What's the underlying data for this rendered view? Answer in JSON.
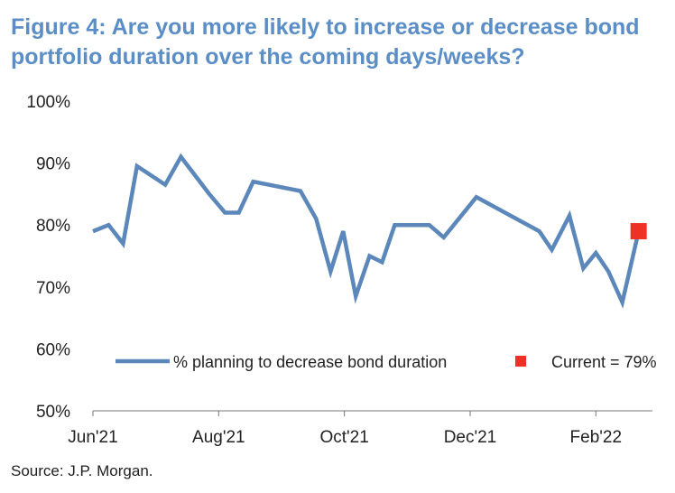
{
  "chart_data": {
    "type": "line",
    "title": "Figure 4: Are you more likely to increase or decrease bond portfolio duration over the coming days/weeks?",
    "source": "Source: J.P. Morgan.",
    "ylim": [
      50,
      100
    ],
    "yticks": [
      50,
      60,
      70,
      80,
      90,
      100
    ],
    "ytick_labels": [
      "50%",
      "60%",
      "70%",
      "80%",
      "90%",
      "100%"
    ],
    "xlim": [
      0,
      8.9
    ],
    "xticks": [
      0,
      2,
      4,
      6,
      8
    ],
    "xtick_labels": [
      "Jun'21",
      "Aug'21",
      "Oct'21",
      "Dec'21",
      "Feb'22"
    ],
    "grid": false,
    "series": [
      {
        "name": "% planning to decrease bond duration",
        "color": "#5b87bb",
        "x": [
          0,
          0.25,
          0.48,
          0.7,
          1.15,
          1.4,
          1.85,
          2.1,
          2.32,
          2.55,
          3.3,
          3.55,
          3.78,
          3.98,
          4.18,
          4.4,
          4.6,
          4.8,
          5.08,
          5.35,
          5.58,
          6.1,
          7.1,
          7.3,
          7.58,
          7.8,
          8.0,
          8.2,
          8.42,
          8.68
        ],
        "y": [
          79,
          80,
          77,
          89.5,
          86.5,
          91,
          85,
          82,
          82,
          87,
          85.5,
          81,
          72.5,
          79,
          68.5,
          75,
          74,
          80,
          80,
          80,
          78,
          84.5,
          79,
          76,
          81.5,
          73,
          75.5,
          72.5,
          67.5,
          79
        ]
      }
    ],
    "current_marker": {
      "label": "Current = 79%",
      "x": 8.68,
      "y": 79,
      "color": "#ee3124"
    },
    "legend_placement": "bottom"
  }
}
